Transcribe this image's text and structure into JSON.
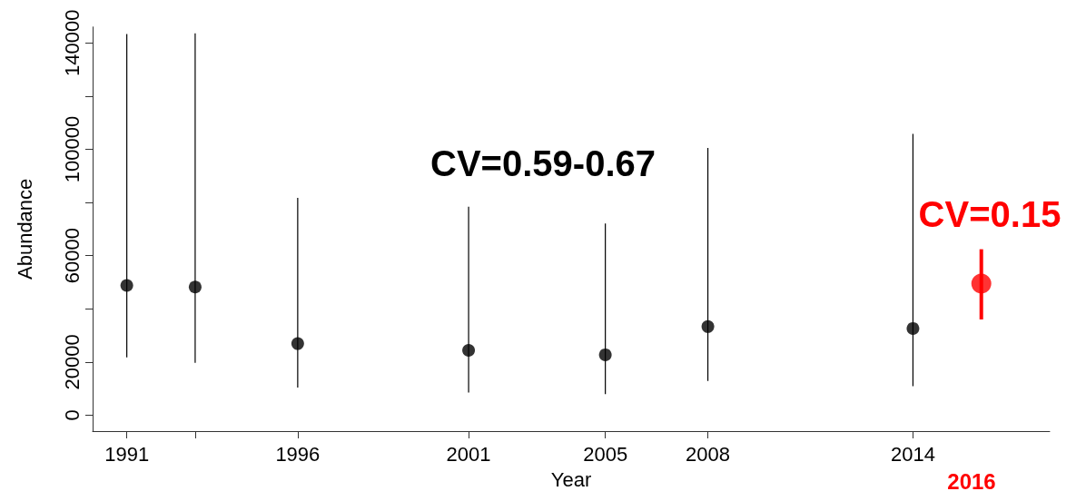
{
  "chart_data": {
    "type": "scatter",
    "xlabel": "Year",
    "ylabel": "Abundance",
    "xlim": [
      1990,
      2018
    ],
    "xticks": [
      1991,
      {
        "value": 1993,
        "label": null
      },
      1996,
      2001,
      2005,
      2008,
      2014
    ],
    "ylim": [
      -6000,
      146000
    ],
    "yticks": [
      0,
      {
        "value": 20000,
        "label": "20000"
      },
      {
        "value": 40000,
        "label": null
      },
      60000,
      {
        "value": 80000,
        "label": null
      },
      100000,
      {
        "value": 120000,
        "label": null
      },
      140000
    ],
    "series": [
      {
        "color": "#000000",
        "x": [
          1991,
          1993,
          1996,
          2001,
          2005,
          2008,
          2014
        ],
        "values": [
          48800,
          48200,
          26900,
          24400,
          22700,
          33300,
          32600
        ],
        "errors": [
          [
            21700,
            143300
          ],
          [
            19700,
            143600
          ],
          [
            10400,
            81700
          ],
          [
            8500,
            78400
          ],
          [
            7900,
            72100
          ],
          [
            12900,
            100500
          ],
          [
            10900,
            105800
          ]
        ]
      },
      {
        "color": "#ff0000",
        "x": [
          2016
        ],
        "values": [
          49500
        ],
        "errors": [
          [
            36000,
            62400
          ]
        ]
      }
    ],
    "annotations": [
      "CV=0.59-0.67",
      "CV=0.15",
      "2016"
    ],
    "marker": "circle",
    "grid": false
  }
}
